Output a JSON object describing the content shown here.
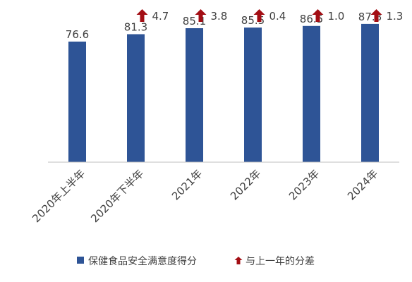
{
  "chart_data": {
    "type": "bar",
    "categories": [
      "2020年上半年",
      "2020年下半年",
      "2021年",
      "2022年",
      "2023年",
      "2024年"
    ],
    "series": [
      {
        "name": "保健食品安全满意度得分",
        "values": [
          76.6,
          81.3,
          85.1,
          85.5,
          86.5,
          87.8
        ]
      },
      {
        "name": "与上一年的分差",
        "values": [
          null,
          4.7,
          3.8,
          0.4,
          1.0,
          1.3
        ]
      }
    ],
    "value_labels": [
      "76.6",
      "81.3",
      "85.1",
      "85.5",
      "86.5",
      "87.8"
    ],
    "diff_labels": [
      "",
      "4.7",
      "3.8",
      "0.4",
      "1.0",
      "1.3"
    ],
    "ylim": [
      0,
      100
    ],
    "grid": false,
    "legend_position": "bottom",
    "colors": {
      "bar": "#2E5496",
      "arrow": "#A30E14",
      "axis": "#BFBFBF",
      "text": "#404040"
    }
  },
  "legend": {
    "score_label": "保健食品安全满意度得分",
    "diff_label": "与上一年的分差"
  }
}
